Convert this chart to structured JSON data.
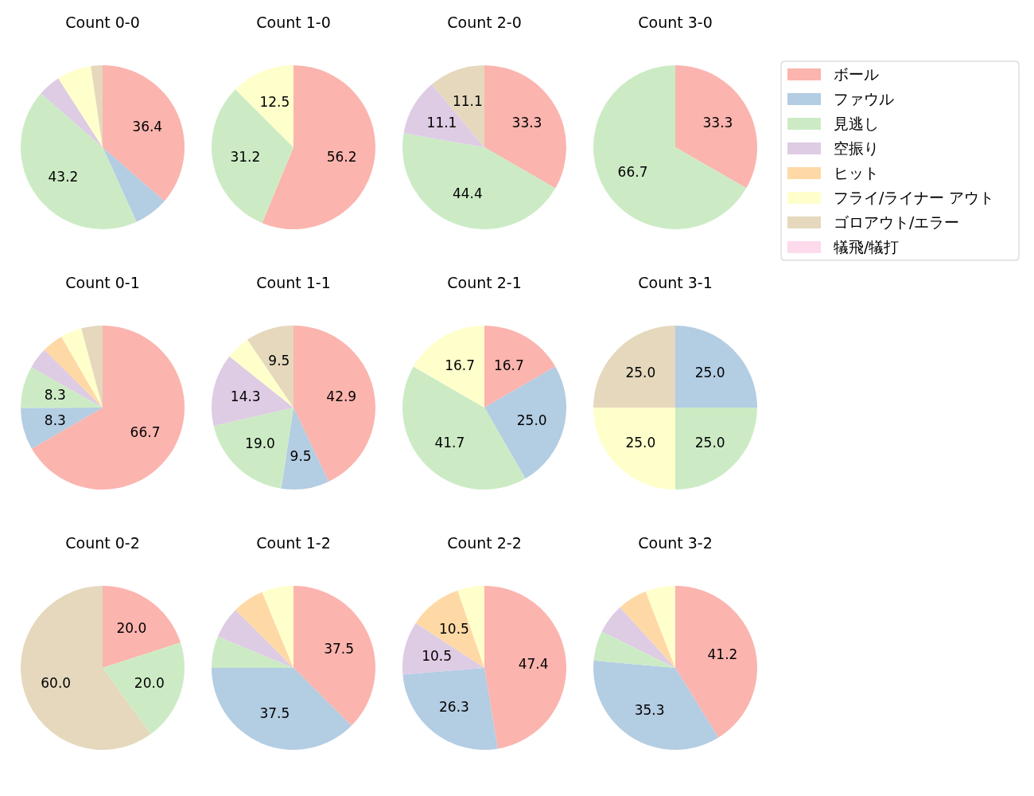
{
  "chart_data": [
    {
      "type": "pie",
      "title": "Count 0-0",
      "legend": "right",
      "categories": [
        "ボール",
        "ファウル",
        "見逃し",
        "空振り",
        "ヒット",
        "フライ/ライナー アウト",
        "ゴロアウト/エラー",
        "犠飛/犠打"
      ],
      "values": [
        36.4,
        6.8,
        43.2,
        4.5,
        0,
        6.8,
        2.3,
        0
      ],
      "value_labels": [
        "36.4",
        null,
        "43.2",
        null,
        null,
        null,
        null,
        null
      ],
      "colors": [
        "#fbb4ae",
        "#b3cde3",
        "#ccebc5",
        "#decbe4",
        "#fed9a6",
        "#ffffcc",
        "#e5d8bd",
        "#fddaec"
      ]
    },
    {
      "type": "pie",
      "title": "Count 1-0",
      "categories": [
        null,
        null,
        null
      ],
      "values": [
        56.2,
        31.2,
        12.5
      ],
      "value_labels": [
        "56.2",
        "31.2",
        "12.5"
      ],
      "colors": [
        "#fbb4ae",
        "#ccebc5",
        "#ffffcc"
      ]
    },
    {
      "type": "pie",
      "title": "Count 2-0",
      "categories": [
        null,
        null,
        null,
        null
      ],
      "values": [
        33.3,
        44.4,
        11.1,
        11.1
      ],
      "value_labels": [
        "33.3",
        "44.4",
        "11.1",
        "11.1"
      ],
      "colors": [
        "#fbb4ae",
        "#ccebc5",
        "#decbe4",
        "#e5d8bd"
      ]
    },
    {
      "type": "pie",
      "title": "Count 3-0",
      "categories": [
        null,
        null
      ],
      "values": [
        33.3,
        66.7
      ],
      "value_labels": [
        "33.3",
        "66.7"
      ],
      "colors": [
        "#fbb4ae",
        "#ccebc5"
      ]
    },
    {
      "type": "pie",
      "title": "Count 0-1",
      "categories": [
        null,
        null,
        null,
        null,
        null,
        null,
        null
      ],
      "values": [
        66.7,
        8.3,
        8.3,
        4.2,
        4.2,
        4.2,
        4.2
      ],
      "value_labels": [
        "66.7",
        "8.3",
        "8.3",
        null,
        null,
        null,
        null
      ],
      "colors": [
        "#fbb4ae",
        "#b3cde3",
        "#ccebc5",
        "#decbe4",
        "#fed9a6",
        "#ffffcc",
        "#e5d8bd"
      ]
    },
    {
      "type": "pie",
      "title": "Count 1-1",
      "categories": [
        null,
        null,
        null,
        null,
        null,
        null
      ],
      "values": [
        42.9,
        9.5,
        19.0,
        14.3,
        4.8,
        9.5
      ],
      "value_labels": [
        "42.9",
        "9.5",
        "19.0",
        "14.3",
        null,
        "9.5"
      ],
      "colors": [
        "#fbb4ae",
        "#b3cde3",
        "#ccebc5",
        "#decbe4",
        "#ffffcc",
        "#e5d8bd"
      ]
    },
    {
      "type": "pie",
      "title": "Count 2-1",
      "categories": [
        null,
        null,
        null,
        null
      ],
      "values": [
        16.7,
        25.0,
        41.7,
        16.7
      ],
      "value_labels": [
        "16.7",
        "25.0",
        "41.7",
        "16.7"
      ],
      "colors": [
        "#fbb4ae",
        "#b3cde3",
        "#ccebc5",
        "#ffffcc"
      ]
    },
    {
      "type": "pie",
      "title": "Count 3-1",
      "categories": [
        null,
        null,
        null,
        null
      ],
      "values": [
        25.0,
        25.0,
        25.0,
        25.0
      ],
      "value_labels": [
        "25.0",
        "25.0",
        "25.0",
        "25.0"
      ],
      "colors": [
        "#b3cde3",
        "#ccebc5",
        "#ffffcc",
        "#e5d8bd"
      ]
    },
    {
      "type": "pie",
      "title": "Count 0-2",
      "categories": [
        null,
        null,
        null
      ],
      "values": [
        20.0,
        20.0,
        60.0
      ],
      "value_labels": [
        "20.0",
        "20.0",
        "60.0"
      ],
      "colors": [
        "#fbb4ae",
        "#ccebc5",
        "#e5d8bd"
      ]
    },
    {
      "type": "pie",
      "title": "Count 1-2",
      "categories": [
        null,
        null,
        null,
        null,
        null,
        null
      ],
      "values": [
        37.5,
        37.5,
        6.25,
        6.25,
        6.25,
        6.25
      ],
      "value_labels": [
        "37.5",
        "37.5",
        null,
        null,
        null,
        null
      ],
      "colors": [
        "#fbb4ae",
        "#b3cde3",
        "#ccebc5",
        "#decbe4",
        "#fed9a6",
        "#ffffcc"
      ]
    },
    {
      "type": "pie",
      "title": "Count 2-2",
      "categories": [
        null,
        null,
        null,
        null,
        null
      ],
      "values": [
        47.4,
        26.3,
        10.5,
        10.5,
        5.3
      ],
      "value_labels": [
        "47.4",
        "26.3",
        "10.5",
        "10.5",
        null
      ],
      "colors": [
        "#fbb4ae",
        "#b3cde3",
        "#decbe4",
        "#fed9a6",
        "#ffffcc"
      ]
    },
    {
      "type": "pie",
      "title": "Count 3-2",
      "categories": [
        null,
        null,
        null,
        null,
        null,
        null
      ],
      "values": [
        41.2,
        35.3,
        5.9,
        5.9,
        5.9,
        5.9
      ],
      "value_labels": [
        "41.2",
        "35.3",
        null,
        null,
        null,
        null
      ],
      "colors": [
        "#fbb4ae",
        "#b3cde3",
        "#ccebc5",
        "#decbe4",
        "#fed9a6",
        "#ffffcc"
      ]
    }
  ]
}
